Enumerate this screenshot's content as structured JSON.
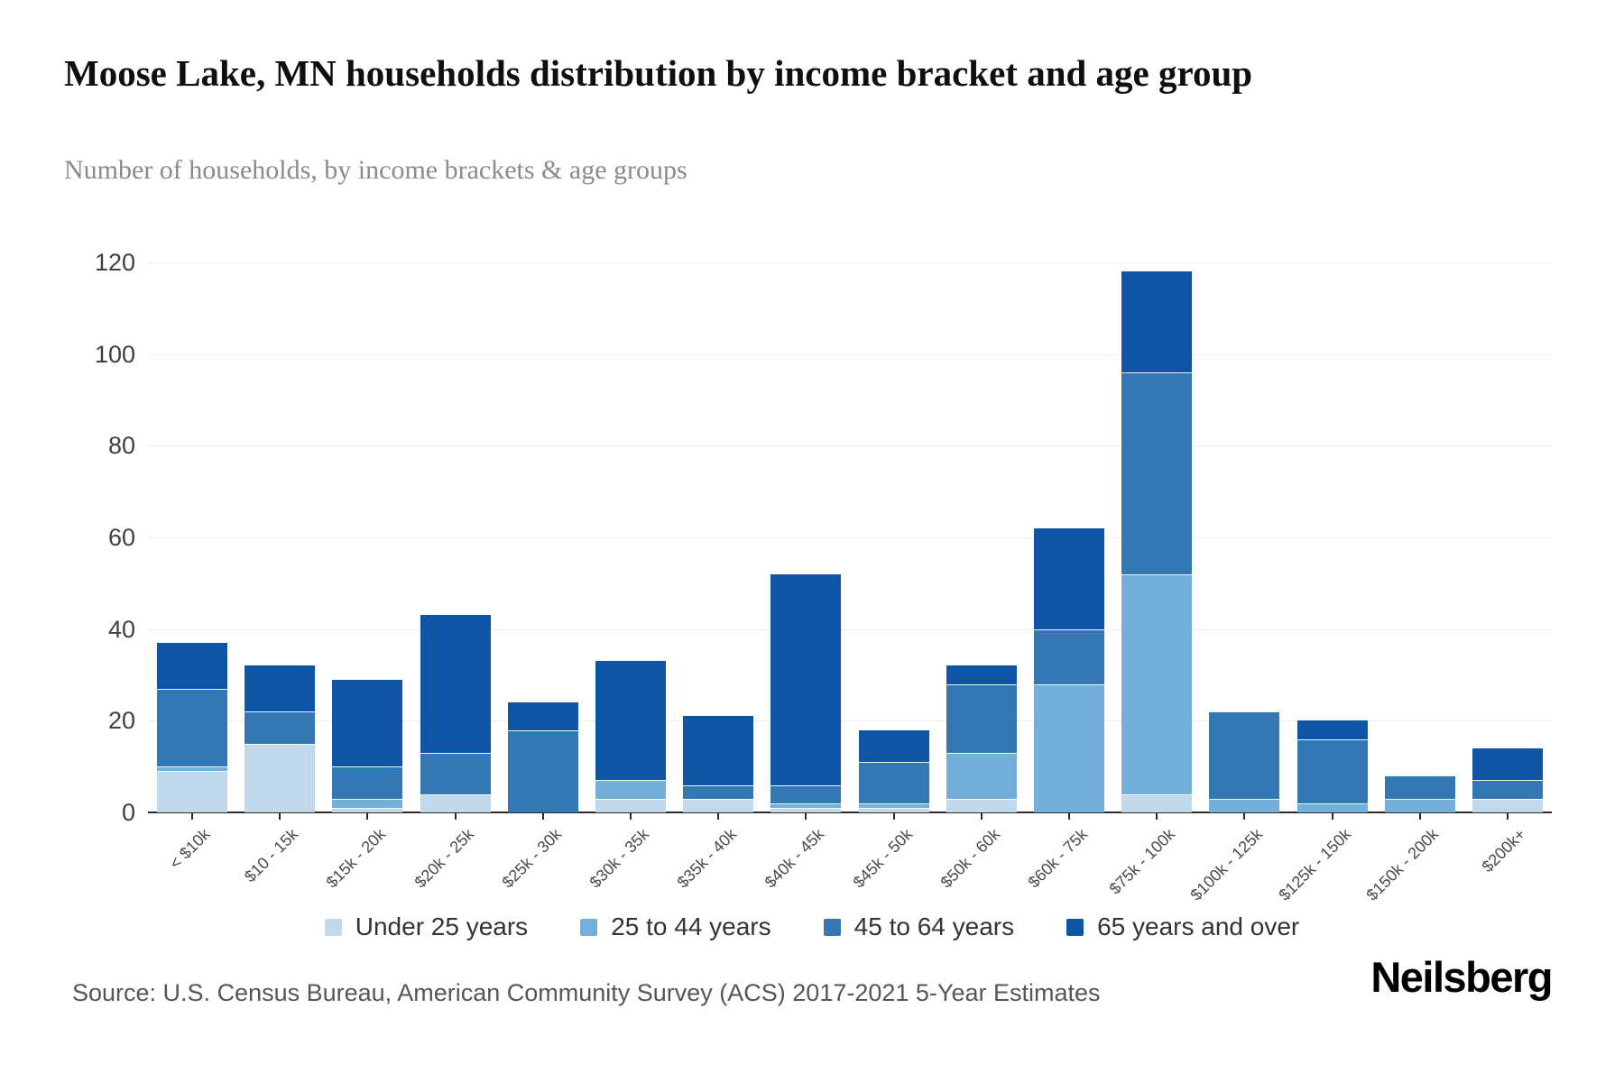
{
  "page": {
    "title": "Moose Lake, MN households distribution by income bracket and age group",
    "subtitle": "Number of households, by income brackets & age groups",
    "source": "Source: U.S. Census Bureau, American Community Survey (ACS) 2017-2021 5-Year Estimates",
    "brand": "Neilsberg"
  },
  "chart_data": {
    "type": "bar",
    "stacked": true,
    "title": "Moose Lake, MN households distribution by income bracket and age group",
    "subtitle": "Number of households, by income brackets & age groups",
    "xlabel": "",
    "ylabel": "Number of households",
    "ylim": [
      0,
      120
    ],
    "yticks": [
      0,
      20,
      40,
      60,
      80,
      100,
      120
    ],
    "grid": true,
    "legend_position": "bottom",
    "categories": [
      "< $10k",
      "$10 - 15k",
      "$15k - 20k",
      "$20k - 25k",
      "$25k - 30k",
      "$30k - 35k",
      "$35k - 40k",
      "$40k - 45k",
      "$45k - 50k",
      "$50k - 60k",
      "$60k - 75k",
      "$75k - 100k",
      "$100k - 125k",
      "$125k - 150k",
      "$150k - 200k",
      "$200k+"
    ],
    "series": [
      {
        "name": "Under 25 years",
        "color": "#c2d9eb",
        "values": [
          9,
          15,
          1,
          4,
          0,
          3,
          3,
          1,
          1,
          3,
          0,
          4,
          0,
          0,
          0,
          3
        ]
      },
      {
        "name": "25 to 44 years",
        "color": "#74afda",
        "values": [
          1,
          0,
          2,
          0,
          0,
          4,
          0,
          1,
          1,
          10,
          28,
          48,
          3,
          2,
          3,
          0
        ]
      },
      {
        "name": "45 to 64 years",
        "color": "#3377b5",
        "values": [
          17,
          7,
          7,
          9,
          18,
          0,
          3,
          4,
          9,
          15,
          12,
          44,
          19,
          14,
          5,
          4
        ]
      },
      {
        "name": "65 years and over",
        "color": "#0e56a5",
        "values": [
          10,
          10,
          19,
          30,
          6,
          26,
          15,
          46,
          7,
          4,
          22,
          22,
          0,
          4,
          0,
          7
        ]
      }
    ],
    "totals": [
      37,
      32,
      29,
      43,
      24,
      33,
      21,
      52,
      18,
      32,
      62,
      118,
      22,
      20,
      8,
      14
    ]
  }
}
